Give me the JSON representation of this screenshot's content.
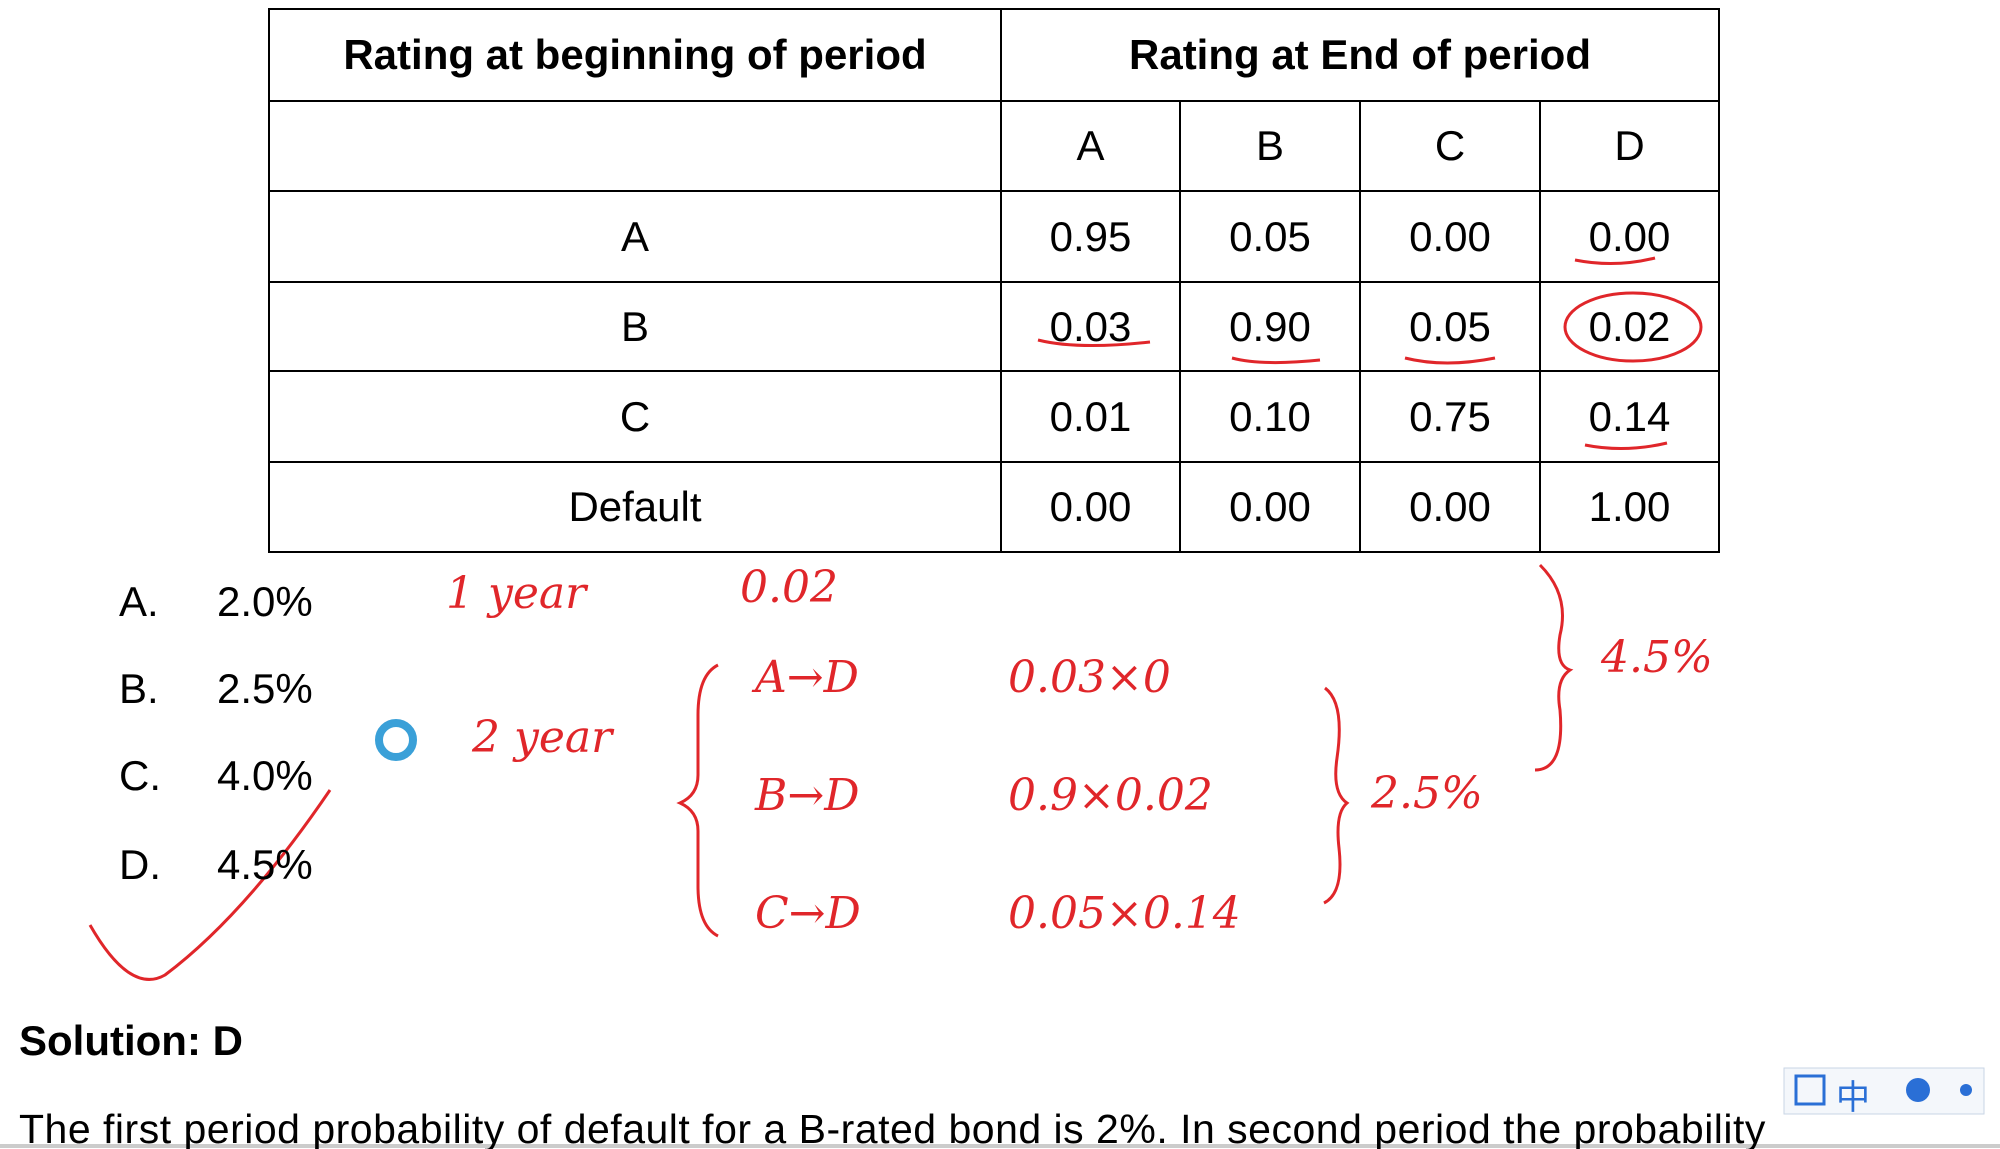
{
  "table": {
    "header": [
      "Rating at beginning of period",
      "Rating at End of period"
    ],
    "subheader": [
      "A",
      "B",
      "C",
      "D"
    ],
    "rows": [
      [
        "A",
        "0.95",
        "0.05",
        "0.00",
        "0.00"
      ],
      [
        "B",
        "0.03",
        "0.90",
        "0.05",
        "0.02"
      ],
      [
        "C",
        "0.01",
        "0.10",
        "0.75",
        "0.14"
      ],
      [
        "Default",
        "0.00",
        "0.00",
        "0.00",
        "1.00"
      ]
    ]
  },
  "options": [
    {
      "letter": "A.",
      "text": "2.0%"
    },
    {
      "letter": "B.",
      "text": "2.5%"
    },
    {
      "letter": "C.",
      "text": "4.0%"
    },
    {
      "letter": "D.",
      "text": "4.5%"
    }
  ],
  "annotations": {
    "one_year": "1 year",
    "one_year_value": "0.02",
    "two_year": "2 year",
    "paths": [
      "A→D",
      "B→D",
      "C→D"
    ],
    "products": [
      "0.03×0",
      "0.9×0.02",
      "0.05×0.14"
    ],
    "subtotal": "2.5%",
    "total": "4.5%"
  },
  "solution": "Solution: D",
  "paragraph": "The first period probability of default for a B-rated bond is 2%. In second period the probability",
  "toolbar": {
    "language": "中"
  }
}
